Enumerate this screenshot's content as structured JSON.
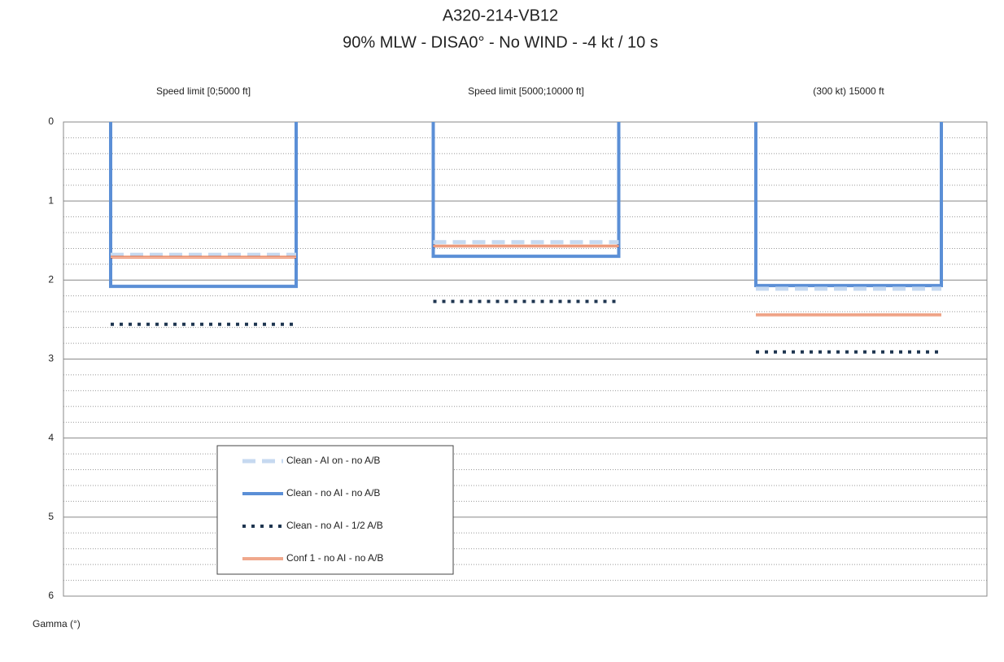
{
  "chart_data": {
    "type": "step-bar",
    "title": "A320-214-VB12",
    "subtitle": "90% MLW - DISA0° - No WIND - -4 kt / 10 s",
    "y_label": "Gamma (°)",
    "categories": [
      "Speed limit [0;5000 ft]",
      "Speed limit [5000;10000 ft]",
      "(300 kt) 15000 ft"
    ],
    "series": [
      {
        "name": "Clean - AI on - no A/B",
        "color": "#c6d9f0",
        "style": "dashed",
        "values": [
          1.68,
          1.52,
          2.11
        ]
      },
      {
        "name": "Clean - no AI - no A/B",
        "color": "#5b8fd6",
        "style": "box",
        "values": [
          2.08,
          1.7,
          2.07
        ]
      },
      {
        "name": "Clean - no AI - 1/2 A/B",
        "color": "#1f3650",
        "style": "dotted",
        "values": [
          2.56,
          2.27,
          2.91
        ]
      },
      {
        "name": "Conf 1 - no AI - no A/B",
        "color": "#e0501a",
        "style": "double",
        "values": [
          1.71,
          1.57,
          2.44
        ]
      }
    ],
    "ylim": [
      0,
      6
    ],
    "yticks": [
      0,
      1,
      2,
      3,
      4,
      5,
      6
    ],
    "y_inverted": true,
    "grid": true,
    "minor_grid": true
  }
}
